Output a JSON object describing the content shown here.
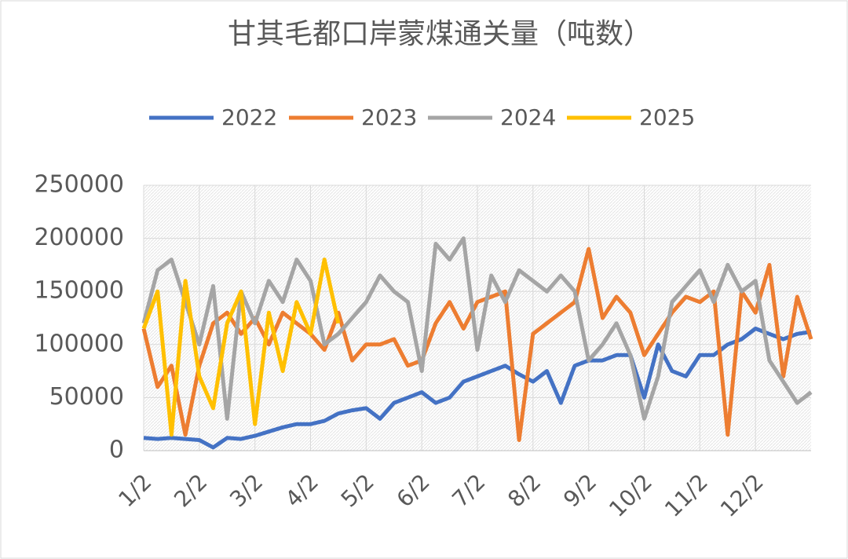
{
  "chart_data": {
    "type": "line",
    "title": "甘其毛都口岸蒙煤通关量（吨数）",
    "categories": [
      "1/2",
      null,
      null,
      null,
      "2/2",
      null,
      null,
      null,
      "3/2",
      null,
      null,
      null,
      "4/2",
      null,
      null,
      null,
      "5/2",
      null,
      null,
      null,
      "6/2",
      null,
      null,
      null,
      "7/2",
      null,
      null,
      null,
      "8/2",
      null,
      null,
      null,
      "9/2",
      null,
      null,
      null,
      "10/2",
      null,
      null,
      null,
      "11/2",
      null,
      null,
      null,
      "12/2",
      null,
      null,
      null,
      null
    ],
    "series": [
      {
        "name": "2022",
        "color": "#4472c4",
        "values": [
          12000,
          11000,
          12000,
          11000,
          10000,
          3000,
          12000,
          11000,
          14000,
          18000,
          22000,
          25000,
          25000,
          28000,
          35000,
          38000,
          40000,
          30000,
          45000,
          50000,
          55000,
          45000,
          50000,
          65000,
          70000,
          75000,
          80000,
          72000,
          65000,
          75000,
          45000,
          80000,
          85000,
          85000,
          90000,
          90000,
          50000,
          100000,
          75000,
          70000,
          90000,
          90000,
          100000,
          105000,
          115000,
          110000,
          105000,
          110000,
          112000
        ]
      },
      {
        "name": "2023",
        "color": "#ed7d31",
        "values": [
          115000,
          60000,
          80000,
          15000,
          80000,
          120000,
          130000,
          110000,
          125000,
          100000,
          130000,
          120000,
          110000,
          95000,
          130000,
          85000,
          100000,
          100000,
          105000,
          80000,
          85000,
          120000,
          140000,
          115000,
          140000,
          145000,
          150000,
          10000,
          110000,
          120000,
          130000,
          140000,
          190000,
          125000,
          145000,
          130000,
          90000,
          110000,
          130000,
          145000,
          140000,
          150000,
          15000,
          150000,
          130000,
          175000,
          70000,
          145000,
          105000
        ]
      },
      {
        "name": "2024",
        "color": "#a5a5a5",
        "values": [
          120000,
          170000,
          180000,
          140000,
          100000,
          155000,
          30000,
          150000,
          120000,
          160000,
          140000,
          180000,
          160000,
          100000,
          110000,
          125000,
          140000,
          165000,
          150000,
          140000,
          75000,
          195000,
          180000,
          200000,
          95000,
          165000,
          140000,
          170000,
          160000,
          150000,
          165000,
          150000,
          85000,
          100000,
          120000,
          90000,
          30000,
          70000,
          140000,
          155000,
          170000,
          140000,
          175000,
          150000,
          160000,
          85000,
          65000,
          45000,
          55000
        ]
      },
      {
        "name": "2025",
        "color": "#ffc000",
        "values": [
          115000,
          150000,
          15000,
          160000,
          70000,
          40000,
          120000,
          150000,
          25000,
          130000,
          75000,
          140000,
          110000,
          180000,
          120000,
          null,
          null,
          null,
          null,
          null,
          null,
          null,
          null,
          null,
          null,
          null,
          null,
          null,
          null,
          null,
          null,
          null,
          null,
          null,
          null,
          null,
          null,
          null,
          null,
          null,
          null,
          null,
          null,
          null,
          null,
          null,
          null,
          null,
          null
        ]
      }
    ],
    "ylim": [
      0,
      250000
    ],
    "yticks": [
      0,
      50000,
      100000,
      150000,
      200000,
      250000
    ],
    "grid": true,
    "legend": "top"
  }
}
